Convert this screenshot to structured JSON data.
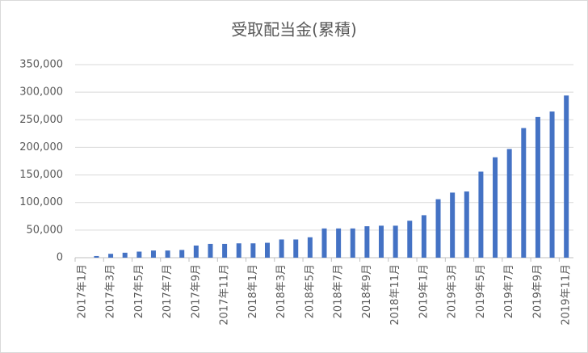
{
  "chart_data": {
    "type": "bar",
    "title": "受取配当金(累積)",
    "categories": [
      "2017年1月",
      null,
      "2017年3月",
      null,
      "2017年5月",
      null,
      "2017年7月",
      null,
      "2017年9月",
      null,
      "2017年11月",
      null,
      "2018年1月",
      null,
      "2018年3月",
      null,
      "2018年5月",
      null,
      "2018年7月",
      null,
      "2018年9月",
      null,
      "2018年11月",
      null,
      "2019年1月",
      null,
      "2019年3月",
      null,
      "2019年5月",
      null,
      "2019年7月",
      null,
      "2019年9月",
      null,
      "2019年11月"
    ],
    "values": [
      0,
      3000,
      7000,
      9000,
      11000,
      13000,
      13000,
      14000,
      22000,
      25000,
      25000,
      26000,
      26000,
      27000,
      33000,
      33000,
      37000,
      53000,
      53000,
      53000,
      57000,
      58000,
      58000,
      67000,
      77000,
      106000,
      118000,
      120000,
      156000,
      182000,
      197000,
      235000,
      255000,
      265000,
      294000
    ],
    "color": "#4472c4",
    "ylim": [
      0,
      350000
    ],
    "yticks": [
      0,
      {
        "value": 50000,
        "label": "50,000"
      },
      {
        "value": 100000,
        "label": "100,000"
      },
      {
        "value": 150000,
        "label": "150,000"
      },
      {
        "value": 200000,
        "label": "200,000"
      },
      {
        "value": 250000,
        "label": "250,000"
      },
      {
        "value": 300000,
        "label": "300,000"
      },
      {
        "value": 350000,
        "label": "350,000"
      }
    ],
    "grid": true
  }
}
